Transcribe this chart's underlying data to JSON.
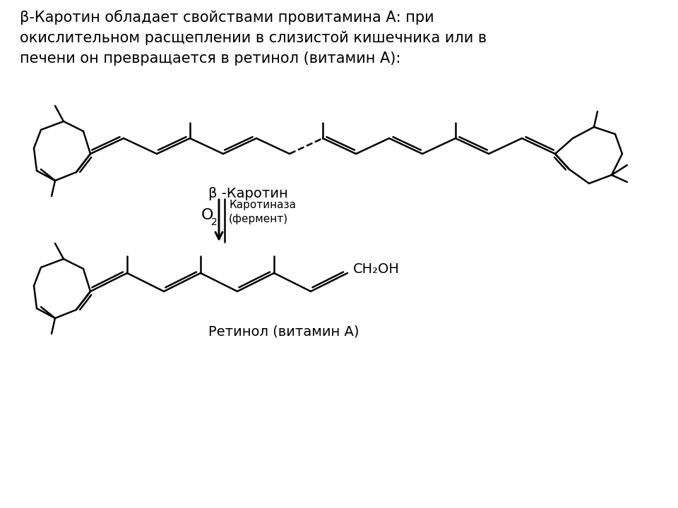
{
  "title_text": "β-Каротин обладает свойствами провитамина А: при\nокислительном расщеплении в слизистой кишечника или в\nпечени он превращается в ретинол (витамин А):",
  "beta_carotene_label": "β -Каротин",
  "retinol_label": "Ретинол (витамин А)",
  "o2_label": "O",
  "o2_subscript": "2",
  "enzyme_label": "Каротиназа\n(фермент)",
  "ch2oh_label": "CH₂OH",
  "bg_color": "#ffffff",
  "line_color": "#000000",
  "text_color": "#000000",
  "line_width": 1.8,
  "font_size_title": 15,
  "font_size_label": 14,
  "font_size_small": 11
}
